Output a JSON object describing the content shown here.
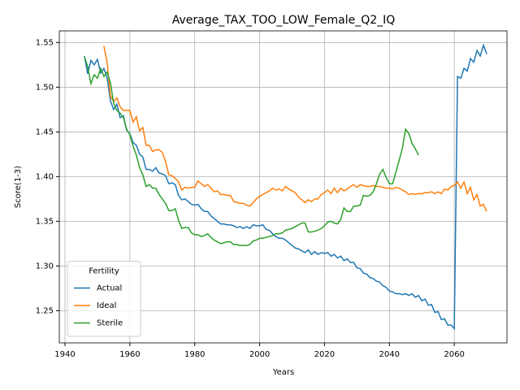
{
  "chart_data": {
    "type": "line",
    "title": "Average_TAX_TOO_LOW_Female_Q2_IQ",
    "xlabel": "Years",
    "ylabel": "Score(1-3)",
    "legend_title": "Fertility",
    "legend": "lower left",
    "grid": true,
    "x": [
      1946,
      1947,
      1948,
      1949,
      1950,
      1951,
      1952,
      1953,
      1954,
      1955,
      1956,
      1957,
      1958,
      1959,
      1960,
      1961,
      1962,
      1963,
      1964,
      1965,
      1966,
      1967,
      1968,
      1969,
      1970,
      1971,
      1972,
      1973,
      1974,
      1975,
      1976,
      1977,
      1978,
      1979,
      1980,
      1981,
      1982,
      1983,
      1984,
      1985,
      1986,
      1987,
      1988,
      1989,
      1990,
      1991,
      1992,
      1993,
      1994,
      1995,
      1996,
      1997,
      1998,
      1999,
      2000,
      2001,
      2002,
      2003,
      2004,
      2005,
      2006,
      2007,
      2008,
      2009,
      2010,
      2011,
      2012,
      2013,
      2014,
      2015,
      2016,
      2017,
      2018,
      2019,
      2020,
      2021,
      2022,
      2023,
      2024,
      2025,
      2026,
      2027,
      2028,
      2029,
      2030,
      2031,
      2032,
      2033,
      2034,
      2035,
      2036,
      2037,
      2038,
      2039,
      2040,
      2041,
      2042,
      2043,
      2044,
      2045,
      2046,
      2047,
      2048,
      2049,
      2050,
      2051,
      2052,
      2053,
      2054,
      2055,
      2056,
      2057,
      2058,
      2059,
      2060,
      2061,
      2062,
      2063,
      2064,
      2065,
      2066,
      2067,
      2068,
      2069,
      2070
    ],
    "series": [
      {
        "name": "Actual",
        "color": "#1f77b4",
        "values": [
          1.535,
          1.515,
          1.53,
          1.525,
          1.531,
          1.516,
          1.521,
          1.51,
          1.485,
          1.475,
          1.481,
          1.466,
          1.468,
          1.452,
          1.448,
          1.438,
          1.435,
          1.425,
          1.422,
          1.408,
          1.408,
          1.406,
          1.41,
          1.404,
          1.403,
          1.401,
          1.392,
          1.393,
          1.391,
          1.379,
          1.374,
          1.375,
          1.372,
          1.369,
          1.368,
          1.369,
          1.364,
          1.361,
          1.361,
          1.356,
          1.353,
          1.35,
          1.347,
          1.347,
          1.346,
          1.346,
          1.345,
          1.343,
          1.344,
          1.342,
          1.344,
          1.342,
          1.346,
          1.345,
          1.345,
          1.346,
          1.341,
          1.34,
          1.336,
          1.333,
          1.331,
          1.331,
          1.329,
          1.326,
          1.323,
          1.32,
          1.319,
          1.317,
          1.315,
          1.318,
          1.313,
          1.316,
          1.313,
          1.315,
          1.314,
          1.315,
          1.311,
          1.313,
          1.309,
          1.311,
          1.306,
          1.308,
          1.304,
          1.304,
          1.298,
          1.297,
          1.292,
          1.291,
          1.287,
          1.286,
          1.283,
          1.282,
          1.278,
          1.276,
          1.272,
          1.271,
          1.269,
          1.269,
          1.268,
          1.269,
          1.267,
          1.269,
          1.265,
          1.267,
          1.261,
          1.263,
          1.256,
          1.257,
          1.248,
          1.249,
          1.24,
          1.241,
          1.234,
          1.234,
          1.23,
          1.512,
          1.51,
          1.521,
          1.518,
          1.532,
          1.528,
          1.541,
          1.535,
          1.547,
          1.537
        ]
      },
      {
        "name": "Ideal",
        "color": "#ff7f0e",
        "values": [
          null,
          null,
          null,
          null,
          null,
          null,
          1.546,
          1.527,
          1.49,
          1.484,
          1.488,
          1.478,
          1.474,
          1.474,
          1.474,
          1.461,
          1.467,
          1.451,
          1.455,
          1.435,
          1.435,
          1.428,
          1.43,
          1.43,
          1.427,
          1.417,
          1.402,
          1.401,
          1.398,
          1.394,
          1.385,
          1.388,
          1.387,
          1.388,
          1.388,
          1.395,
          1.392,
          1.389,
          1.391,
          1.387,
          1.383,
          1.384,
          1.38,
          1.38,
          1.379,
          1.379,
          1.372,
          1.371,
          1.37,
          1.37,
          1.368,
          1.367,
          1.371,
          1.375,
          1.378,
          1.38,
          1.382,
          1.384,
          1.387,
          1.385,
          1.386,
          1.384,
          1.389,
          1.386,
          1.384,
          1.382,
          1.377,
          1.374,
          1.371,
          1.374,
          1.372,
          1.375,
          1.375,
          1.38,
          1.382,
          1.385,
          1.381,
          1.387,
          1.382,
          1.387,
          1.384,
          1.386,
          1.389,
          1.391,
          1.388,
          1.391,
          1.39,
          1.389,
          1.389,
          1.39,
          1.389,
          1.389,
          1.388,
          1.387,
          1.387,
          1.386,
          1.388,
          1.387,
          1.385,
          1.383,
          1.38,
          1.381,
          1.38,
          1.381,
          1.381,
          1.382,
          1.382,
          1.383,
          1.381,
          1.383,
          1.381,
          1.386,
          1.385,
          1.389,
          1.39,
          1.394,
          1.387,
          1.394,
          1.381,
          1.388,
          1.374,
          1.38,
          1.367,
          1.369,
          1.361
        ]
      },
      {
        "name": "Sterile",
        "color": "#2ca02c",
        "values": [
          1.534,
          1.523,
          1.504,
          1.514,
          1.51,
          1.521,
          1.512,
          1.517,
          1.505,
          1.482,
          1.474,
          1.471,
          1.466,
          1.453,
          1.447,
          1.434,
          1.424,
          1.41,
          1.402,
          1.389,
          1.391,
          1.387,
          1.387,
          1.38,
          1.375,
          1.37,
          1.362,
          1.362,
          1.364,
          1.351,
          1.342,
          1.343,
          1.343,
          1.337,
          1.335,
          1.335,
          1.333,
          1.334,
          1.336,
          1.332,
          1.329,
          1.327,
          1.325,
          1.326,
          1.327,
          1.327,
          1.324,
          1.324,
          1.323,
          1.323,
          1.323,
          1.324,
          1.328,
          1.329,
          1.331,
          1.331,
          1.332,
          1.333,
          1.334,
          1.336,
          1.336,
          1.337,
          1.34,
          1.341,
          1.342,
          1.344,
          1.346,
          1.348,
          1.348,
          1.338,
          1.338,
          1.339,
          1.34,
          1.342,
          1.345,
          1.349,
          1.35,
          1.348,
          1.347,
          1.352,
          1.365,
          1.361,
          1.361,
          1.367,
          1.367,
          1.368,
          1.379,
          1.378,
          1.379,
          1.383,
          1.392,
          1.403,
          1.408,
          1.399,
          1.392,
          1.392,
          1.405,
          1.418,
          1.432,
          1.453,
          1.448,
          1.437,
          1.431,
          1.424,
          null,
          null,
          null,
          null,
          null,
          null,
          null,
          null,
          null,
          null,
          null,
          null,
          null,
          null,
          null,
          null,
          null,
          null,
          null,
          null,
          null
        ]
      }
    ],
    "xlim": [
      1938.25,
      2076.25
    ],
    "xticks": [
      1940,
      1960,
      1980,
      2000,
      2020,
      2040,
      2060
    ],
    "ylim": [
      1.214,
      1.563
    ],
    "yticks": [
      1.25,
      {
        "value": 1.3,
        "label": "1.30"
      },
      1.35,
      {
        "value": 1.4,
        "label": "1.40"
      },
      1.45,
      {
        "value": 1.5,
        "label": "1.50"
      },
      1.55
    ]
  }
}
